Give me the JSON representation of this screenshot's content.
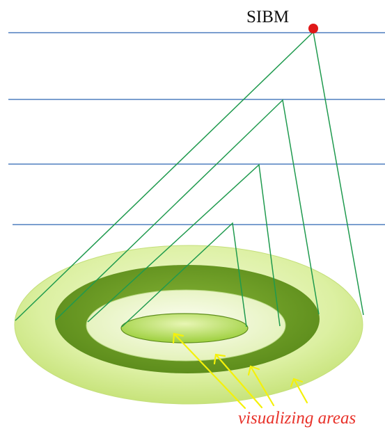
{
  "diagram": {
    "apex_label": "SIBM",
    "caption": "visualizing areas",
    "colors": {
      "horizontal_line": "#4f7fbf",
      "sight_line": "#1f9a4e",
      "apex_dot": "#e01818",
      "arrow": "#f4f10a",
      "caption": "#e8322a",
      "outer_ring": "#d9ef9c",
      "dark_ring": "#6a9a22",
      "pale_ring": "#e9f5c6",
      "inner_disc": "#b9dd5f"
    }
  }
}
